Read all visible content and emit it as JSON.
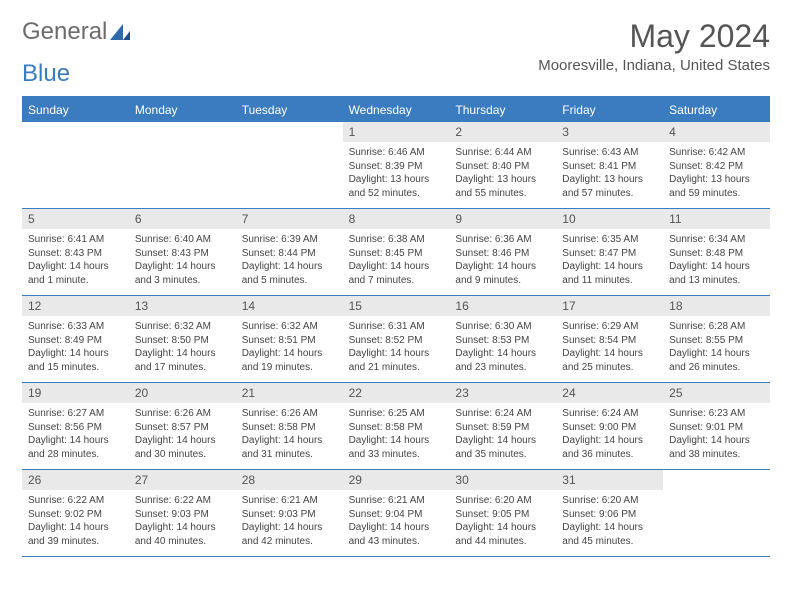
{
  "logo": {
    "word1": "General",
    "word2": "Blue"
  },
  "title": "May 2024",
  "location": "Mooresville, Indiana, United States",
  "colors": {
    "accent": "#3b7bbf",
    "header_bg": "#3b7bbf",
    "daynum_bg": "#e9e9e9",
    "text": "#444444",
    "title_text": "#555555"
  },
  "day_headers": [
    "Sunday",
    "Monday",
    "Tuesday",
    "Wednesday",
    "Thursday",
    "Friday",
    "Saturday"
  ],
  "weeks": [
    [
      {
        "n": "",
        "sr": "",
        "ss": "",
        "dl": ""
      },
      {
        "n": "",
        "sr": "",
        "ss": "",
        "dl": ""
      },
      {
        "n": "",
        "sr": "",
        "ss": "",
        "dl": ""
      },
      {
        "n": "1",
        "sr": "Sunrise: 6:46 AM",
        "ss": "Sunset: 8:39 PM",
        "dl": "Daylight: 13 hours and 52 minutes."
      },
      {
        "n": "2",
        "sr": "Sunrise: 6:44 AM",
        "ss": "Sunset: 8:40 PM",
        "dl": "Daylight: 13 hours and 55 minutes."
      },
      {
        "n": "3",
        "sr": "Sunrise: 6:43 AM",
        "ss": "Sunset: 8:41 PM",
        "dl": "Daylight: 13 hours and 57 minutes."
      },
      {
        "n": "4",
        "sr": "Sunrise: 6:42 AM",
        "ss": "Sunset: 8:42 PM",
        "dl": "Daylight: 13 hours and 59 minutes."
      }
    ],
    [
      {
        "n": "5",
        "sr": "Sunrise: 6:41 AM",
        "ss": "Sunset: 8:43 PM",
        "dl": "Daylight: 14 hours and 1 minute."
      },
      {
        "n": "6",
        "sr": "Sunrise: 6:40 AM",
        "ss": "Sunset: 8:43 PM",
        "dl": "Daylight: 14 hours and 3 minutes."
      },
      {
        "n": "7",
        "sr": "Sunrise: 6:39 AM",
        "ss": "Sunset: 8:44 PM",
        "dl": "Daylight: 14 hours and 5 minutes."
      },
      {
        "n": "8",
        "sr": "Sunrise: 6:38 AM",
        "ss": "Sunset: 8:45 PM",
        "dl": "Daylight: 14 hours and 7 minutes."
      },
      {
        "n": "9",
        "sr": "Sunrise: 6:36 AM",
        "ss": "Sunset: 8:46 PM",
        "dl": "Daylight: 14 hours and 9 minutes."
      },
      {
        "n": "10",
        "sr": "Sunrise: 6:35 AM",
        "ss": "Sunset: 8:47 PM",
        "dl": "Daylight: 14 hours and 11 minutes."
      },
      {
        "n": "11",
        "sr": "Sunrise: 6:34 AM",
        "ss": "Sunset: 8:48 PM",
        "dl": "Daylight: 14 hours and 13 minutes."
      }
    ],
    [
      {
        "n": "12",
        "sr": "Sunrise: 6:33 AM",
        "ss": "Sunset: 8:49 PM",
        "dl": "Daylight: 14 hours and 15 minutes."
      },
      {
        "n": "13",
        "sr": "Sunrise: 6:32 AM",
        "ss": "Sunset: 8:50 PM",
        "dl": "Daylight: 14 hours and 17 minutes."
      },
      {
        "n": "14",
        "sr": "Sunrise: 6:32 AM",
        "ss": "Sunset: 8:51 PM",
        "dl": "Daylight: 14 hours and 19 minutes."
      },
      {
        "n": "15",
        "sr": "Sunrise: 6:31 AM",
        "ss": "Sunset: 8:52 PM",
        "dl": "Daylight: 14 hours and 21 minutes."
      },
      {
        "n": "16",
        "sr": "Sunrise: 6:30 AM",
        "ss": "Sunset: 8:53 PM",
        "dl": "Daylight: 14 hours and 23 minutes."
      },
      {
        "n": "17",
        "sr": "Sunrise: 6:29 AM",
        "ss": "Sunset: 8:54 PM",
        "dl": "Daylight: 14 hours and 25 minutes."
      },
      {
        "n": "18",
        "sr": "Sunrise: 6:28 AM",
        "ss": "Sunset: 8:55 PM",
        "dl": "Daylight: 14 hours and 26 minutes."
      }
    ],
    [
      {
        "n": "19",
        "sr": "Sunrise: 6:27 AM",
        "ss": "Sunset: 8:56 PM",
        "dl": "Daylight: 14 hours and 28 minutes."
      },
      {
        "n": "20",
        "sr": "Sunrise: 6:26 AM",
        "ss": "Sunset: 8:57 PM",
        "dl": "Daylight: 14 hours and 30 minutes."
      },
      {
        "n": "21",
        "sr": "Sunrise: 6:26 AM",
        "ss": "Sunset: 8:58 PM",
        "dl": "Daylight: 14 hours and 31 minutes."
      },
      {
        "n": "22",
        "sr": "Sunrise: 6:25 AM",
        "ss": "Sunset: 8:58 PM",
        "dl": "Daylight: 14 hours and 33 minutes."
      },
      {
        "n": "23",
        "sr": "Sunrise: 6:24 AM",
        "ss": "Sunset: 8:59 PM",
        "dl": "Daylight: 14 hours and 35 minutes."
      },
      {
        "n": "24",
        "sr": "Sunrise: 6:24 AM",
        "ss": "Sunset: 9:00 PM",
        "dl": "Daylight: 14 hours and 36 minutes."
      },
      {
        "n": "25",
        "sr": "Sunrise: 6:23 AM",
        "ss": "Sunset: 9:01 PM",
        "dl": "Daylight: 14 hours and 38 minutes."
      }
    ],
    [
      {
        "n": "26",
        "sr": "Sunrise: 6:22 AM",
        "ss": "Sunset: 9:02 PM",
        "dl": "Daylight: 14 hours and 39 minutes."
      },
      {
        "n": "27",
        "sr": "Sunrise: 6:22 AM",
        "ss": "Sunset: 9:03 PM",
        "dl": "Daylight: 14 hours and 40 minutes."
      },
      {
        "n": "28",
        "sr": "Sunrise: 6:21 AM",
        "ss": "Sunset: 9:03 PM",
        "dl": "Daylight: 14 hours and 42 minutes."
      },
      {
        "n": "29",
        "sr": "Sunrise: 6:21 AM",
        "ss": "Sunset: 9:04 PM",
        "dl": "Daylight: 14 hours and 43 minutes."
      },
      {
        "n": "30",
        "sr": "Sunrise: 6:20 AM",
        "ss": "Sunset: 9:05 PM",
        "dl": "Daylight: 14 hours and 44 minutes."
      },
      {
        "n": "31",
        "sr": "Sunrise: 6:20 AM",
        "ss": "Sunset: 9:06 PM",
        "dl": "Daylight: 14 hours and 45 minutes."
      },
      {
        "n": "",
        "sr": "",
        "ss": "",
        "dl": ""
      }
    ]
  ]
}
